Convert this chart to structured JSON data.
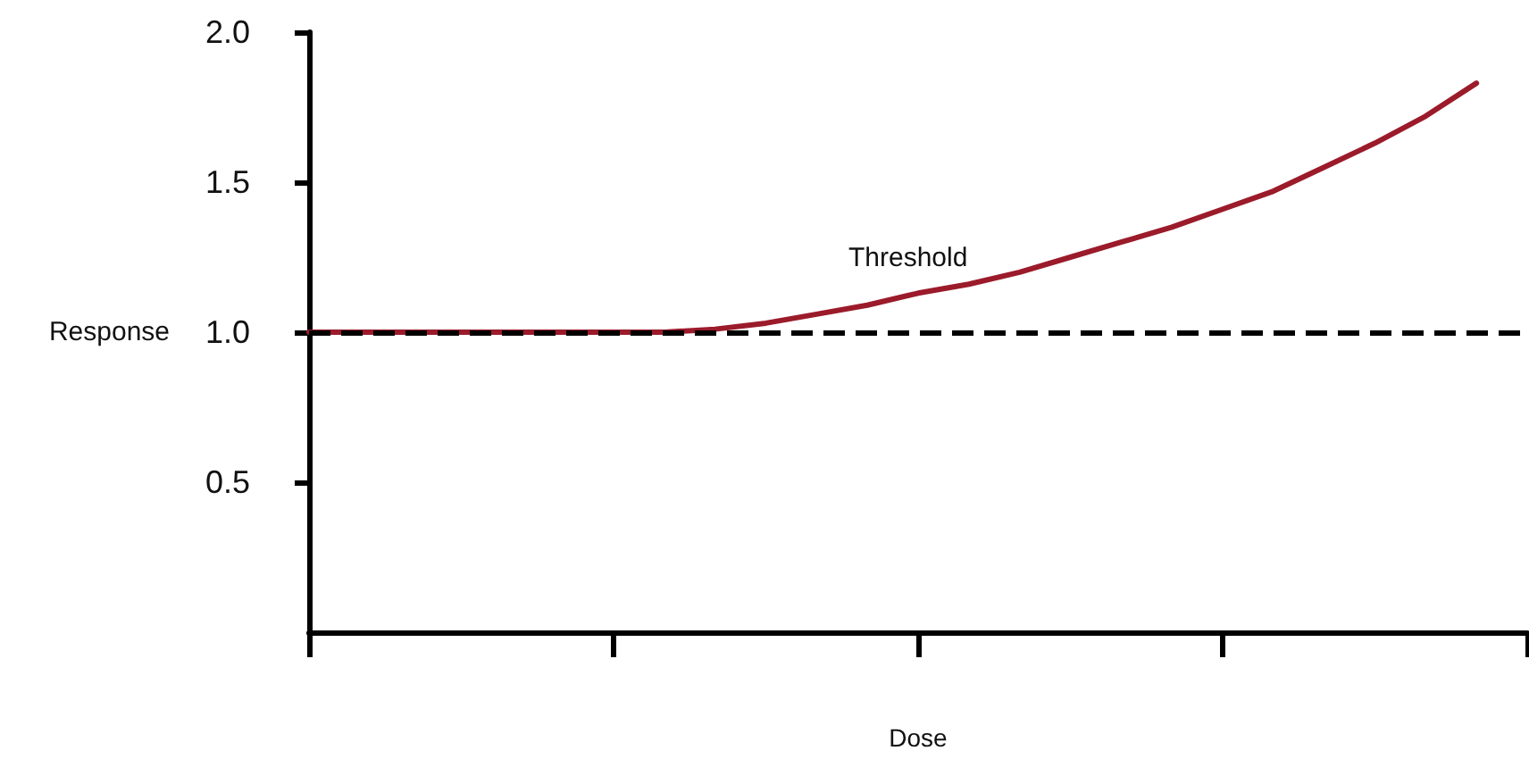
{
  "chart_data": {
    "type": "line",
    "xlabel": "Dose",
    "ylabel": "Response",
    "categories": [
      null,
      null,
      null,
      null,
      null,
      null,
      null,
      null,
      null,
      null,
      null,
      null,
      null,
      null,
      null,
      null,
      null,
      null,
      null,
      null,
      null,
      null,
      null,
      null,
      null
    ],
    "ylim": [
      0,
      2
    ],
    "yticks": [
      {
        "value": 0.5,
        "label": "0.5"
      },
      {
        "value": 1,
        "label": "1.0"
      },
      {
        "value": 1.5,
        "label": "1.5"
      },
      {
        "value": 2,
        "label": "2.0"
      }
    ],
    "tick_labels": "y",
    "grid": false,
    "marker": "none",
    "line_style": "solid",
    "series": [
      {
        "color": "#9b1b2a",
        "values": [
          1.0,
          1.0,
          1.0,
          1.0,
          1.0,
          1.0,
          1.0,
          1.0,
          1.01,
          1.03,
          1.06,
          1.09,
          1.13,
          1.16,
          1.2,
          1.25,
          1.3,
          1.35,
          1.41,
          1.47,
          1.55,
          1.63,
          1.72,
          1.83,
          null
        ]
      }
    ],
    "ref_lines": [
      {
        "axis": "y",
        "value": 1,
        "color": "#000000",
        "line_style": "dashed"
      }
    ],
    "annotations": [
      "Threshold"
    ]
  }
}
